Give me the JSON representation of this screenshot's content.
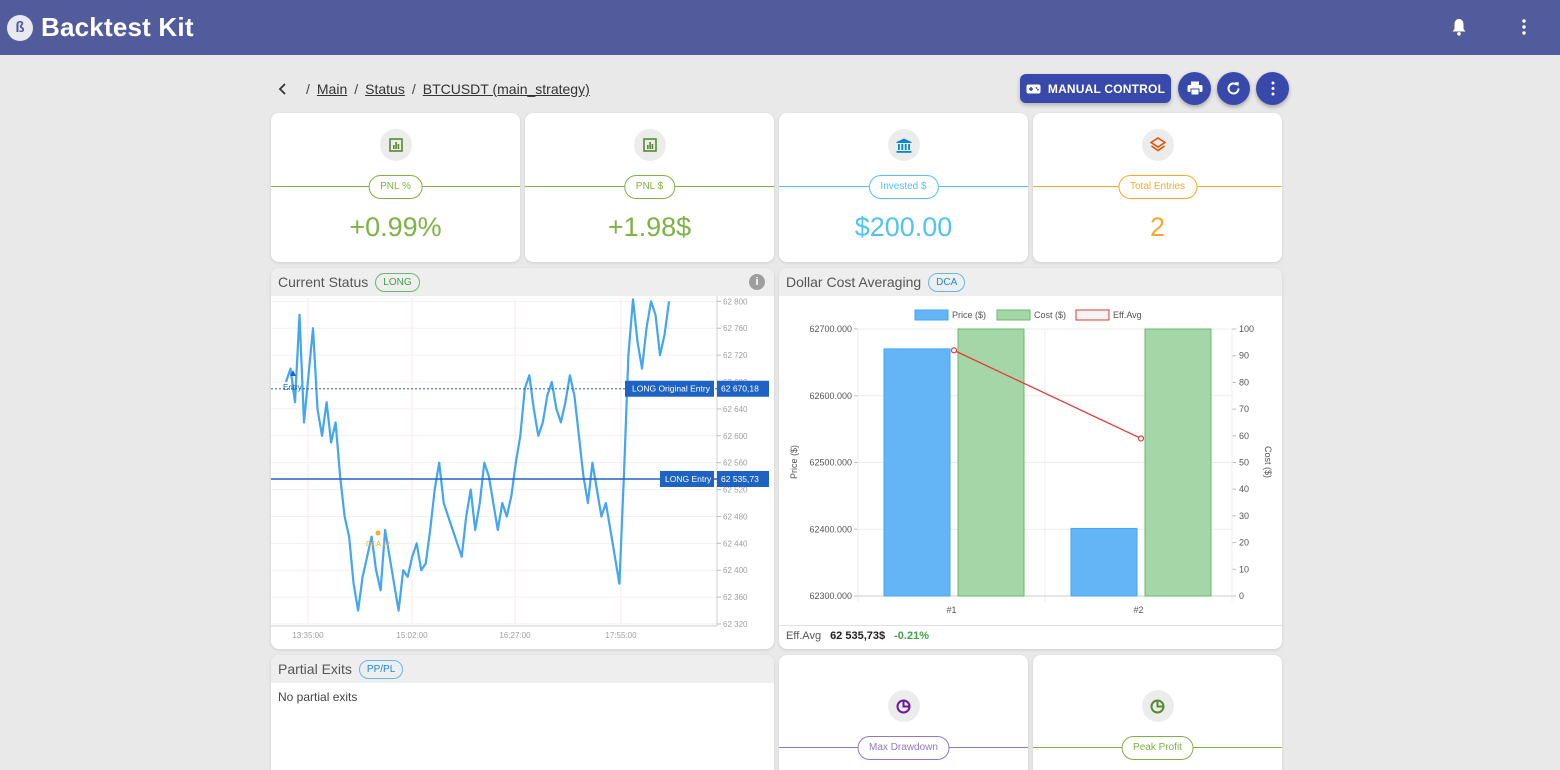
{
  "app": {
    "title": "Backtest Kit",
    "logo_glyph": "ß"
  },
  "breadcrumb": {
    "items": [
      "Main",
      "Status",
      "BTCUSDT (main_strategy)"
    ],
    "separator": "/"
  },
  "actions": {
    "manual_control_label": "MANUAL CONTROL"
  },
  "stats": [
    {
      "label": "PNL %",
      "value": "+0.99%",
      "color": "#7cb342",
      "icon": "chart-icon"
    },
    {
      "label": "PNL $",
      "value": "+1.98$",
      "color": "#7cb342",
      "icon": "chart-icon"
    },
    {
      "label": "Invested $",
      "value": "$200.00",
      "color": "#4fc3f7",
      "icon": "bank-icon"
    },
    {
      "label": "Total Entries",
      "value": "2",
      "color": "#ffa726",
      "icon": "layers-icon"
    }
  ],
  "current_status": {
    "title": "Current Status",
    "tag": "LONG",
    "info_glyph": "i",
    "price_ticks": [
      "62 800",
      "62 760",
      "62 720",
      "62 680",
      "62 640",
      "62 600",
      "62 560",
      "62 520",
      "62 480",
      "62 440",
      "62 400",
      "62 360",
      "62 320"
    ],
    "time_ticks": [
      "13:35:00",
      "15:02:00",
      "16:27:00",
      "17:55:00"
    ],
    "original_entry_label": "LONG Original Entry",
    "original_entry_price": "62 670,18",
    "entry_label": "LONG Entry",
    "entry_price": "62 535,73",
    "marker_entry_text": "Entry",
    "marker_dca_text": "DCA #2",
    "price_range": [
      62320,
      62805
    ],
    "series": [
      62680,
      62700,
      62650,
      62780,
      62620,
      62690,
      62760,
      62640,
      62600,
      62650,
      62590,
      62620,
      62540,
      62480,
      62450,
      62380,
      62340,
      62390,
      62420,
      62450,
      62400,
      62370,
      62460,
      62420,
      62380,
      62340,
      62400,
      62390,
      62420,
      62440,
      62400,
      62410,
      62460,
      62520,
      62560,
      62500,
      62480,
      62460,
      62440,
      62420,
      62480,
      62520,
      62460,
      62500,
      62560,
      62540,
      62500,
      62460,
      62500,
      62480,
      62510,
      62560,
      62600,
      62670,
      62690,
      62640,
      62600,
      62620,
      62660,
      62680,
      62640,
      62620,
      62650,
      62690,
      62660,
      62600,
      62540,
      62500,
      62560,
      62520,
      62480,
      62500,
      62460,
      62420,
      62380,
      62540,
      62720,
      62805,
      62740,
      62700,
      62760,
      62800,
      62780,
      62720,
      62750,
      62800
    ]
  },
  "dca": {
    "title": "Dollar Cost Averaging",
    "tag": "DCA",
    "legend": [
      "Price ($)",
      "Cost ($)",
      "Eff.Avg"
    ],
    "y_left_label": "Price ($)",
    "y_right_label": "Cost ($)",
    "y_left_ticks": [
      "62700.000",
      "62600.000",
      "62500.000",
      "62400.000",
      "62300.000"
    ],
    "y_right_ticks": [
      "100",
      "90",
      "80",
      "70",
      "60",
      "50",
      "40",
      "30",
      "20",
      "10",
      "0"
    ],
    "footer_label": "Eff.Avg",
    "footer_value": "62 535,73$",
    "footer_change": "-0.21%",
    "colors": {
      "price": "#64b5f6",
      "cost": "#a5d6a7",
      "effavg": "#e53935"
    }
  },
  "chart_data": [
    {
      "type": "bar",
      "title": "Dollar Cost Averaging",
      "categories": [
        "#1",
        "#2"
      ],
      "series": [
        {
          "name": "Price ($)",
          "axis": "left",
          "values": [
            62670.18,
            62401.28
          ]
        },
        {
          "name": "Cost ($)",
          "axis": "right",
          "values": [
            100,
            100
          ]
        },
        {
          "name": "Eff.Avg",
          "type": "line",
          "axis": "right",
          "values": [
            92,
            59
          ]
        }
      ],
      "ylim_left": [
        62300,
        62700
      ],
      "ylim_right": [
        0,
        100
      ],
      "legend": "top"
    }
  ],
  "partial_exits": {
    "title": "Partial Exits",
    "tag": "PP/PL",
    "empty_text": "No partial exits"
  },
  "bottom_stats": [
    {
      "label": "Max Drawdown",
      "color": "#9575cd",
      "icon": "pie-icon"
    },
    {
      "label": "Peak Profit",
      "color": "#7cb342",
      "icon": "pie-icon"
    }
  ]
}
